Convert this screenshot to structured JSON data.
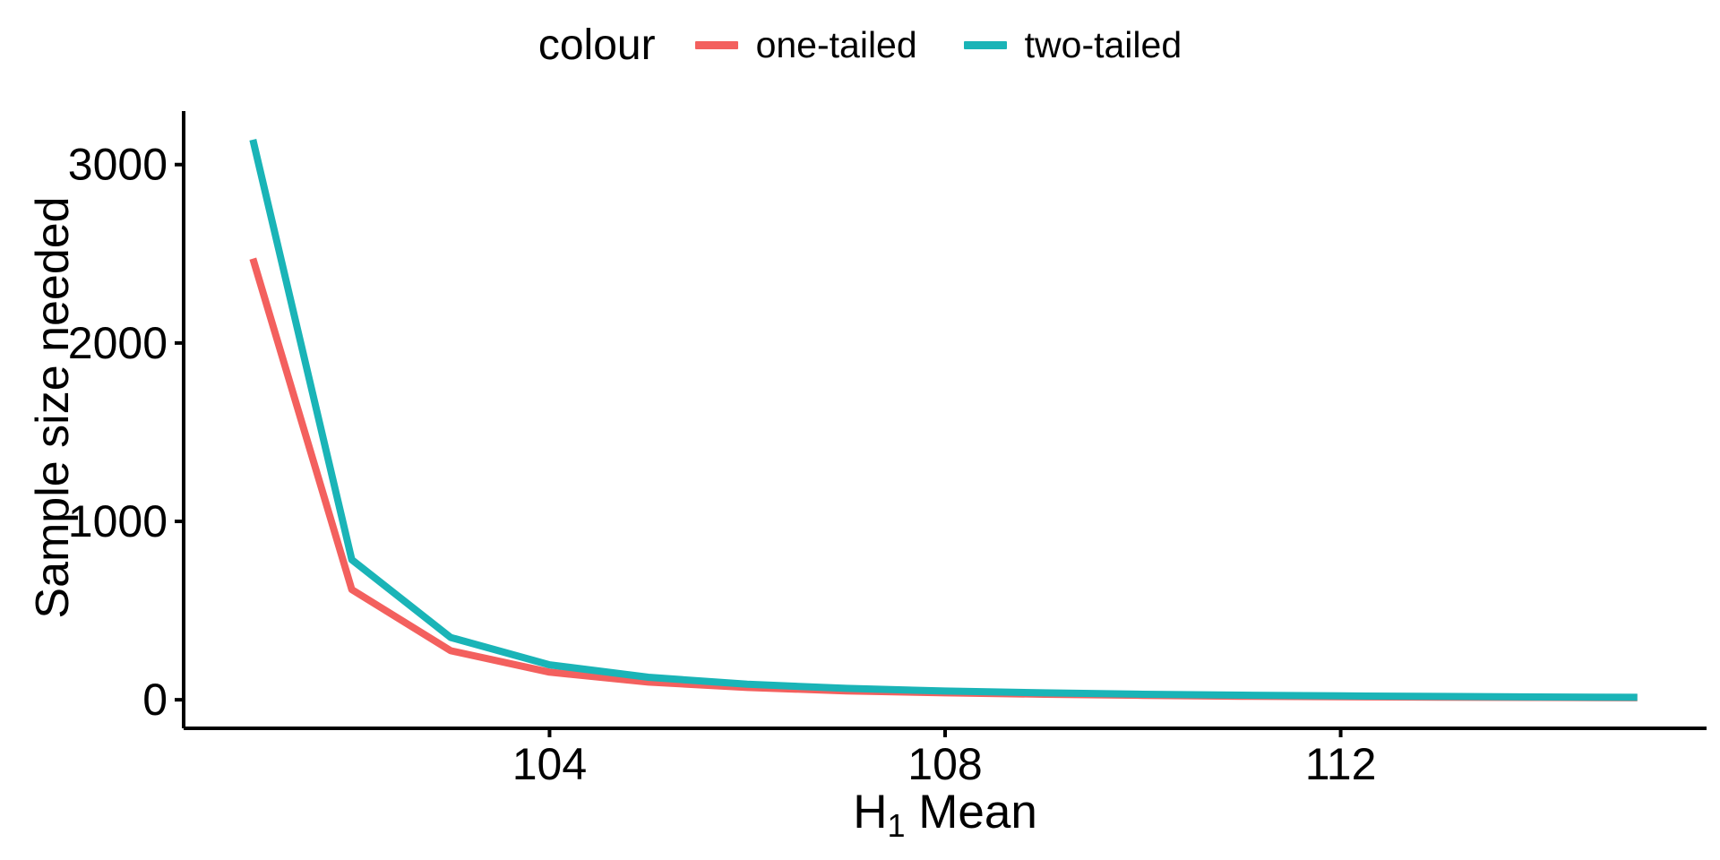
{
  "chart_data": {
    "type": "line",
    "title": "",
    "xlabel": "H1 Mean",
    "ylabel": "Sample size needed",
    "xlabel_parts": {
      "main": "H",
      "sub": "1",
      "rest": " Mean"
    },
    "x": [
      101,
      102,
      103,
      104,
      105,
      106,
      107,
      108,
      109,
      110,
      111,
      112,
      113,
      114,
      115
    ],
    "series": [
      {
        "name": "one-tailed",
        "color": "#F3605E",
        "values": [
          2473,
          618,
          275,
          155,
          99,
          69,
          50,
          39,
          31,
          25,
          20,
          17,
          15,
          13,
          11
        ]
      },
      {
        "name": "two-tailed",
        "color": "#1AB4B7",
        "values": [
          3140,
          785,
          349,
          196,
          126,
          87,
          64,
          49,
          39,
          31,
          26,
          22,
          19,
          16,
          14
        ]
      }
    ],
    "x_ticks": [
      104,
      108,
      112
    ],
    "x_tick_labels": [
      "104",
      "108",
      "112"
    ],
    "y_ticks": [
      0,
      1000,
      2000,
      3000
    ],
    "y_tick_labels": [
      "0",
      "1000",
      "2000",
      "3000"
    ],
    "xlim": [
      100.3,
      115.7
    ],
    "ylim": [
      -160,
      3300
    ],
    "grid": false,
    "legend_position": "top"
  },
  "legend": {
    "title": "colour",
    "items": [
      {
        "label": "one-tailed",
        "color": "#F3605E"
      },
      {
        "label": "two-tailed",
        "color": "#1AB4B7"
      }
    ]
  },
  "style": {
    "axis_color": "#000000",
    "text_color": "#000000",
    "background": "#ffffff",
    "line_width": 8,
    "axis_width": 4
  }
}
